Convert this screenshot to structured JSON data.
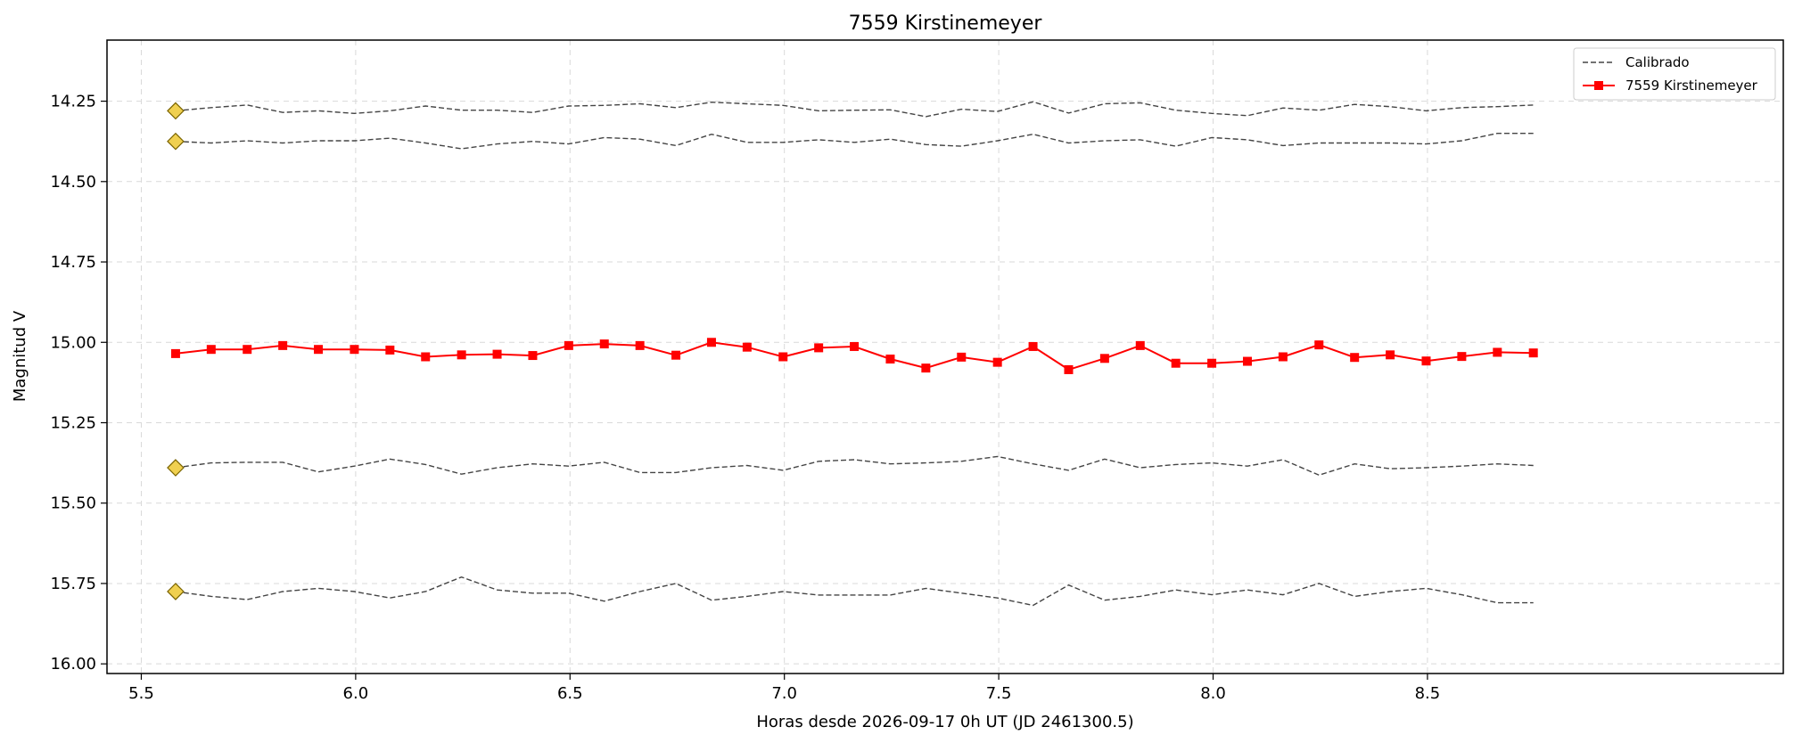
{
  "chart_data": {
    "type": "line",
    "title": "7559 Kirstinemeyer",
    "xlabel": "Horas desde 2026-09-17 0h UT (JD 2461300.5)",
    "ylabel": "Magnitud V",
    "xlim": [
      5.42,
      9.33
    ],
    "ylim": [
      16.03,
      14.06
    ],
    "y_inverted": true,
    "grid": true,
    "legend_position": "top-right",
    "xticks": [
      "5.5",
      "6.0",
      "6.5",
      "7.0",
      "7.5",
      "8.0",
      "8.5"
    ],
    "xtick_values": [
      5.5,
      6.0,
      6.5,
      7.0,
      7.5,
      8.0,
      8.5
    ],
    "yticks": [
      "14.25",
      "14.50",
      "14.75",
      "15.00",
      "15.25",
      "15.50",
      "15.75",
      "16.00"
    ],
    "ytick_values": [
      14.25,
      14.5,
      14.75,
      15.0,
      15.25,
      15.5,
      15.75,
      16.0
    ],
    "x": [
      5.58,
      5.663,
      5.747,
      5.83,
      5.913,
      5.997,
      6.08,
      6.163,
      6.247,
      6.33,
      6.413,
      6.497,
      6.58,
      6.663,
      6.747,
      6.83,
      6.913,
      6.997,
      7.08,
      7.163,
      7.247,
      7.33,
      7.413,
      7.497,
      7.58,
      7.663,
      7.747,
      7.83,
      7.913,
      7.997,
      8.08,
      8.163,
      8.247,
      8.33,
      8.413,
      8.497,
      8.58,
      8.663,
      8.747
    ],
    "series": [
      {
        "name": "7559 Kirstinemeyer",
        "color": "#ff0000",
        "marker": "square",
        "values": [
          15.035,
          15.022,
          15.022,
          15.01,
          15.022,
          15.022,
          15.024,
          15.045,
          15.039,
          15.037,
          15.041,
          15.01,
          15.005,
          15.01,
          15.04,
          15.0,
          15.015,
          15.045,
          15.017,
          15.013,
          15.052,
          15.08,
          15.046,
          15.062,
          15.013,
          15.085,
          15.05,
          15.01,
          15.065,
          15.065,
          15.059,
          15.045,
          15.008,
          15.047,
          15.039,
          15.058,
          15.044,
          15.031,
          15.033
        ]
      },
      {
        "name": "Calibrado",
        "color": "#444444",
        "line_style": "dashed",
        "values": [
          14.28,
          14.27,
          14.262,
          14.285,
          14.28,
          14.288,
          14.28,
          14.265,
          14.278,
          14.278,
          14.285,
          14.265,
          14.263,
          14.258,
          14.27,
          14.253,
          14.258,
          14.263,
          14.28,
          14.278,
          14.277,
          14.298,
          14.275,
          14.282,
          14.252,
          14.287,
          14.258,
          14.255,
          14.278,
          14.288,
          14.295,
          14.271,
          14.278,
          14.26,
          14.267,
          14.28,
          14.27,
          14.267,
          14.262
        ]
      },
      {
        "name": "",
        "color": "#444444",
        "line_style": "dashed",
        "values": [
          14.375,
          14.38,
          14.373,
          14.38,
          14.373,
          14.373,
          14.365,
          14.38,
          14.398,
          14.383,
          14.375,
          14.383,
          14.363,
          14.368,
          14.388,
          14.353,
          14.378,
          14.378,
          14.37,
          14.378,
          14.368,
          14.385,
          14.39,
          14.373,
          14.353,
          14.38,
          14.373,
          14.37,
          14.39,
          14.363,
          14.37,
          14.388,
          14.38,
          14.38,
          14.38,
          14.383,
          14.373,
          14.35,
          14.35
        ]
      },
      {
        "name": "",
        "color": "#444444",
        "line_style": "dashed",
        "values": [
          15.39,
          15.375,
          15.373,
          15.373,
          15.403,
          15.385,
          15.363,
          15.38,
          15.41,
          15.39,
          15.378,
          15.385,
          15.373,
          15.405,
          15.405,
          15.39,
          15.383,
          15.398,
          15.37,
          15.365,
          15.378,
          15.375,
          15.37,
          15.355,
          15.378,
          15.398,
          15.363,
          15.39,
          15.38,
          15.375,
          15.385,
          15.365,
          15.413,
          15.378,
          15.393,
          15.39,
          15.385,
          15.378,
          15.383
        ]
      },
      {
        "name": "",
        "color": "#444444",
        "line_style": "dashed",
        "values": [
          15.775,
          15.79,
          15.8,
          15.775,
          15.765,
          15.775,
          15.795,
          15.775,
          15.73,
          15.77,
          15.78,
          15.78,
          15.805,
          15.775,
          15.75,
          15.802,
          15.79,
          15.775,
          15.786,
          15.786,
          15.786,
          15.765,
          15.78,
          15.795,
          15.818,
          15.755,
          15.802,
          15.79,
          15.77,
          15.785,
          15.77,
          15.785,
          15.75,
          15.79,
          15.775,
          15.765,
          15.785,
          15.81,
          15.81
        ]
      }
    ],
    "reference_markers": {
      "shape": "diamond",
      "color": "#f0d050",
      "x": [
        5.58,
        5.58,
        5.58,
        5.58
      ],
      "y": [
        14.28,
        14.375,
        15.39,
        15.775
      ]
    }
  }
}
